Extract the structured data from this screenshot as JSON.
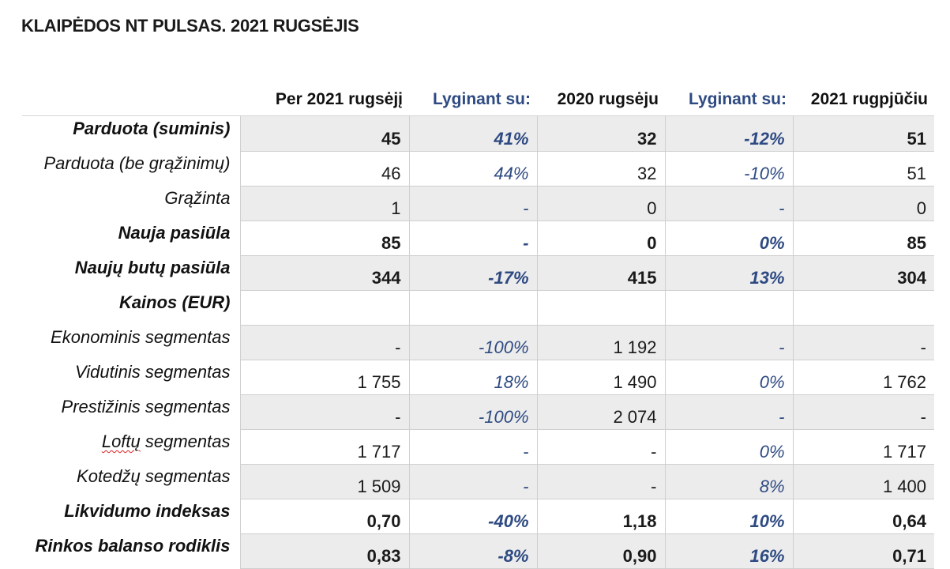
{
  "title": "KLAIPĖDOS NT PULSAS. 2021 RUGSĖJIS",
  "columns": [
    "Per 2021 rugsėjį",
    "Lyginant su:",
    "2020 rugsėju",
    "Lyginant su:",
    "2021 rugpjūčiu"
  ],
  "rows": [
    {
      "label": "Parduota (suminis)",
      "values": [
        "45",
        "41%",
        "32",
        "-12%",
        "51"
      ]
    },
    {
      "label": "Parduota (be grąžinimų)",
      "values": [
        "46",
        "44%",
        "32",
        "-10%",
        "51"
      ]
    },
    {
      "label": "Grąžinta",
      "values": [
        "1",
        "-",
        "0",
        "-",
        "0"
      ]
    },
    {
      "label": "Nauja pasiūla",
      "values": [
        "85",
        "-",
        "0",
        "0%",
        "85"
      ]
    },
    {
      "label": "Naujų butų pasiūla",
      "values": [
        "344",
        "-17%",
        "415",
        "13%",
        "304"
      ]
    },
    {
      "label": "Kainos (EUR)",
      "values": [
        "",
        "",
        "",
        "",
        ""
      ]
    },
    {
      "label": "Ekonominis segmentas",
      "values": [
        "-",
        "-100%",
        "1 192",
        "-",
        "-"
      ]
    },
    {
      "label": "Vidutinis segmentas",
      "values": [
        "1 755",
        "18%",
        "1 490",
        "0%",
        "1 762"
      ]
    },
    {
      "label": "Prestižinis segmentas",
      "values": [
        "-",
        "-100%",
        "2 074",
        "-",
        "-"
      ]
    },
    {
      "label_parts": [
        "Loftų",
        " segmentas"
      ],
      "values": [
        "1 717",
        "-",
        "-",
        "0%",
        "1 717"
      ]
    },
    {
      "label": "Kotedžų segmentas",
      "values": [
        "1 509",
        "-",
        "-",
        "8%",
        "1 400"
      ]
    },
    {
      "label": "Likvidumo indeksas",
      "values": [
        "0,70",
        "-40%",
        "1,18",
        "10%",
        "0,64"
      ]
    },
    {
      "label": "Rinkos balanso rodiklis",
      "values": [
        "0,83",
        "-8%",
        "0,90",
        "16%",
        "0,71"
      ]
    }
  ]
}
